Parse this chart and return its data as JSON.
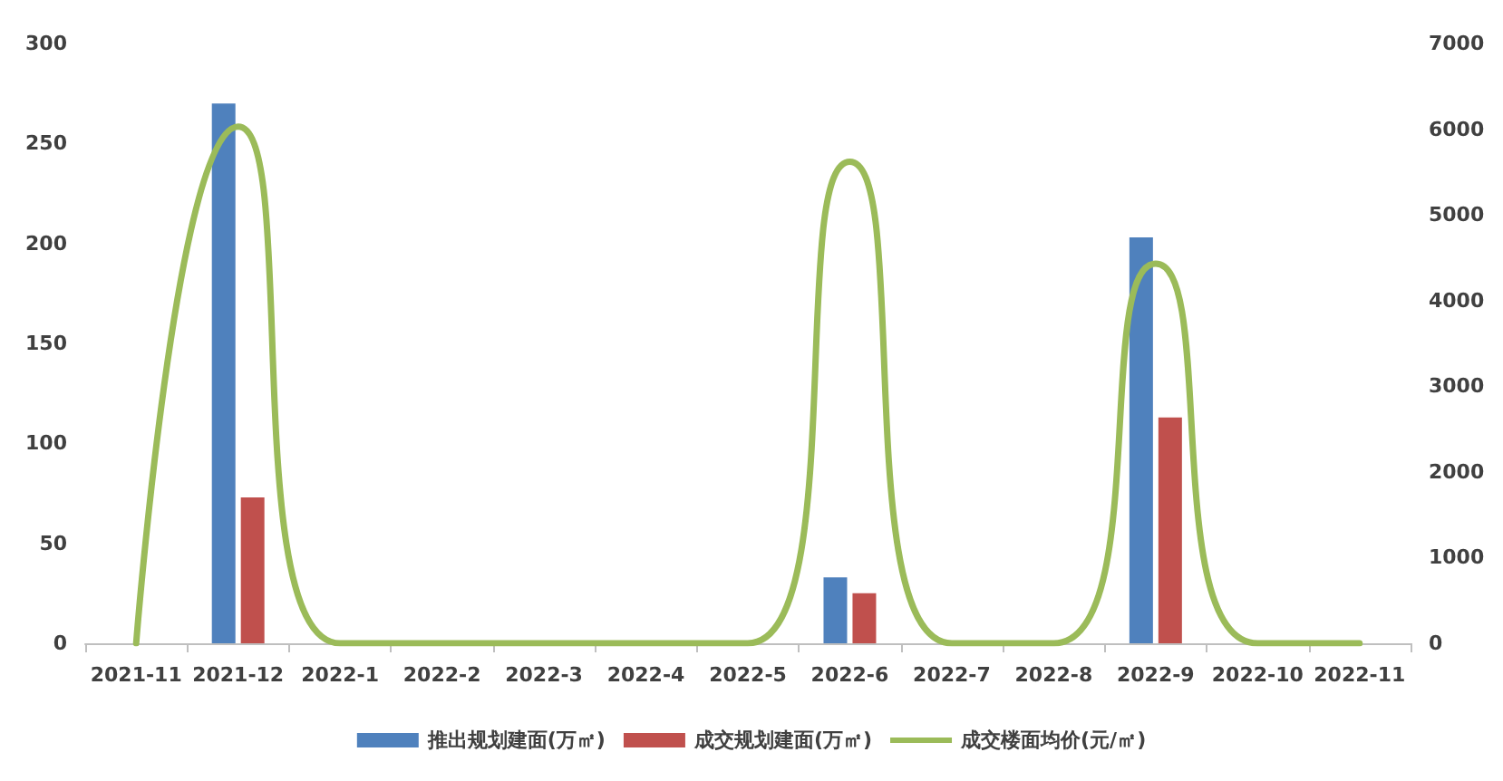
{
  "chart_data": {
    "type": "bar",
    "categories": [
      "2021-11",
      "2021-12",
      "2022-1",
      "2022-2",
      "2022-3",
      "2022-4",
      "2022-5",
      "2022-6",
      "2022-7",
      "2022-8",
      "2022-9",
      "2022-10",
      "2022-11"
    ],
    "series": [
      {
        "name": "推出规划建面(万㎡)",
        "color": "#4f81bd",
        "values": [
          0,
          270,
          0,
          0,
          0,
          0,
          0,
          33,
          0,
          0,
          203,
          0,
          0
        ]
      },
      {
        "name": "成交规划建面(万㎡)",
        "color": "#c0504d",
        "values": [
          0,
          73,
          0,
          0,
          0,
          0,
          0,
          25,
          0,
          0,
          113,
          0,
          0
        ]
      },
      {
        "name": "成交楼面均价(元/㎡)",
        "type": "line",
        "axis": "y2",
        "color": "#9bbb59",
        "values": [
          0,
          6030,
          0,
          0,
          0,
          0,
          0,
          5620,
          0,
          0,
          4430,
          0,
          0
        ],
        "marker": "none",
        "line_style": "solid"
      }
    ],
    "ylim": [
      0,
      300
    ],
    "yticks": [
      0,
      50,
      100,
      150,
      200,
      250,
      300
    ],
    "y2lim": [
      0,
      7000
    ],
    "y2ticks": [
      0,
      1000,
      2000,
      3000,
      4000,
      5000,
      6000,
      7000
    ],
    "grid": false,
    "legend": "bottom"
  }
}
